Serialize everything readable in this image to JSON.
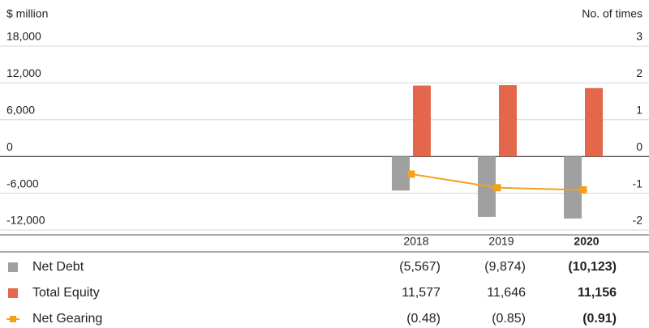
{
  "chart_data": {
    "type": "bar",
    "y_label": "$ million",
    "y2_label": "No. of times",
    "categories": [
      "2018",
      "2019",
      "2020"
    ],
    "ylim": [
      -12000,
      18000
    ],
    "yticks": [
      {
        "value": 18000,
        "label": "18,000"
      },
      {
        "value": 12000,
        "label": "12,000"
      },
      {
        "value": 6000,
        "label": "6,000"
      },
      0,
      {
        "value": -6000,
        "label": "-6,000"
      },
      {
        "value": -12000,
        "label": "-12,000"
      }
    ],
    "y2lim": [
      -2,
      3
    ],
    "y2ticks": [
      3,
      2,
      1,
      0,
      -1,
      -2
    ],
    "grid": true,
    "series": [
      {
        "name": "Net Debt",
        "type": "bar",
        "color": "#a0a0a0",
        "values": [
          -5567,
          -9874,
          -10123
        ],
        "value_labels": [
          "(5,567)",
          "(9,874)",
          "(10,123)"
        ]
      },
      {
        "name": "Total Equity",
        "type": "bar",
        "color": "#e4664b",
        "values": [
          11577,
          11646,
          11156
        ],
        "value_labels": [
          "11,577",
          "11,646",
          "11,156"
        ]
      },
      {
        "name": "Net Gearing",
        "type": "line",
        "axis": "y2",
        "color": "#f5a01a",
        "values": [
          -0.48,
          -0.85,
          -0.91
        ],
        "value_labels": [
          "(0.48)",
          "(0.85)",
          "(0.91)"
        ]
      }
    ]
  }
}
